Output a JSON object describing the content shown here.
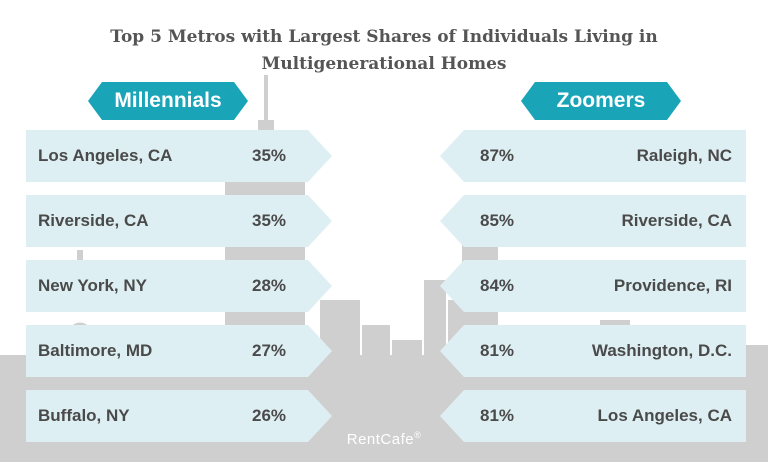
{
  "title_lines": [
    "Top 5 Metros with Largest Shares of Individuals Living in",
    "Multigenerational Homes"
  ],
  "colors": {
    "accent": "#1aa4b8",
    "row_fill": "#deeff3",
    "skyline": "#cfcfcf",
    "text": "#4a4a4a"
  },
  "chart_data": {
    "type": "table",
    "title": "Top 5 Metros with Largest Shares of Individuals Living in Multigenerational Homes",
    "groups": [
      {
        "name": "Millennials",
        "rows": [
          {
            "metro": "Los Angeles, CA",
            "share": "35%"
          },
          {
            "metro": "Riverside, CA",
            "share": "35%"
          },
          {
            "metro": "New York, NY",
            "share": "28%"
          },
          {
            "metro": "Baltimore, MD",
            "share": "27%"
          },
          {
            "metro": "Buffalo, NY",
            "share": "26%"
          }
        ]
      },
      {
        "name": "Zoomers",
        "rows": [
          {
            "metro": "Raleigh, NC",
            "share": "87%"
          },
          {
            "metro": "Riverside, CA",
            "share": "85%"
          },
          {
            "metro": "Providence, RI",
            "share": "84%"
          },
          {
            "metro": "Washington, D.C.",
            "share": "81%"
          },
          {
            "metro": "Los Angeles, CA",
            "share": "81%"
          }
        ]
      }
    ]
  },
  "brand": {
    "name": "RentCafe",
    "mark": "®"
  }
}
